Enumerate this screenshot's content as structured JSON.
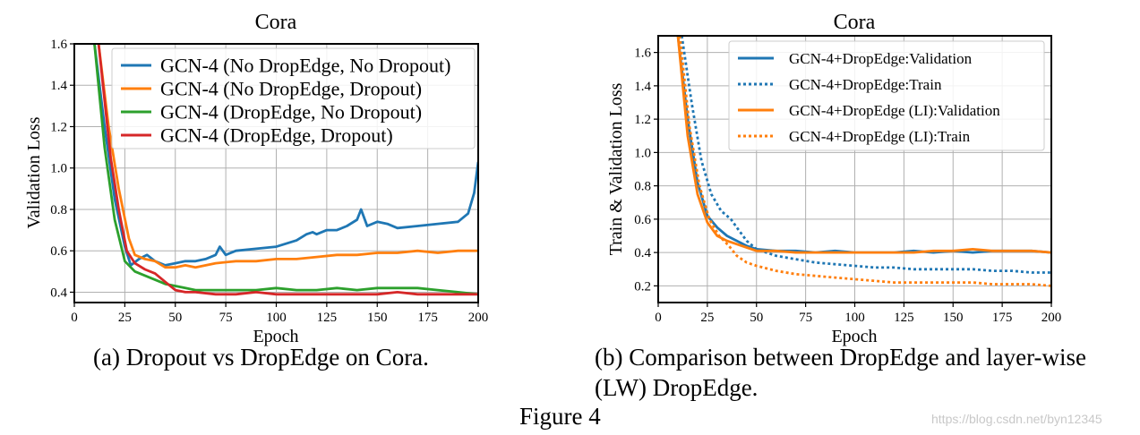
{
  "figure_caption": "Figure 4",
  "watermark": "https://blog.csdn.net/byn12345",
  "captions": {
    "a": "(a) Dropout vs DropEdge on Cora.",
    "b_line1": "(b) Comparison between DropEdge and layer-wise",
    "b_line2": "(LW) DropEdge."
  },
  "colors": {
    "blue": "#1f77b4",
    "orange": "#ff7f0e",
    "green": "#2ca02c",
    "red": "#d62728"
  },
  "chart_data": [
    {
      "type": "line",
      "title": "Cora",
      "xlabel": "Epoch",
      "ylabel": "Validation Loss",
      "xlim": [
        0,
        200
      ],
      "ylim": [
        0.35,
        1.6
      ],
      "xticks": [
        0,
        25,
        50,
        75,
        100,
        125,
        150,
        175,
        200
      ],
      "yticks": [
        0.4,
        0.6,
        0.8,
        1.0,
        1.2,
        1.4,
        1.6
      ],
      "grid": true,
      "legend_position": "top-right",
      "series": [
        {
          "name": "GCN-4 (No DropEdge, No Dropout)",
          "color": "blue",
          "style": "solid",
          "x": [
            10,
            15,
            20,
            25,
            28,
            32,
            36,
            40,
            45,
            50,
            55,
            60,
            65,
            70,
            72,
            75,
            80,
            90,
            100,
            110,
            115,
            118,
            120,
            125,
            130,
            135,
            140,
            142,
            145,
            150,
            155,
            160,
            170,
            180,
            190,
            195,
            198,
            200
          ],
          "y": [
            1.6,
            1.2,
            0.85,
            0.62,
            0.53,
            0.56,
            0.58,
            0.55,
            0.53,
            0.54,
            0.55,
            0.55,
            0.56,
            0.58,
            0.62,
            0.58,
            0.6,
            0.61,
            0.62,
            0.65,
            0.68,
            0.69,
            0.68,
            0.7,
            0.7,
            0.72,
            0.75,
            0.8,
            0.72,
            0.74,
            0.73,
            0.71,
            0.72,
            0.73,
            0.74,
            0.78,
            0.88,
            1.03
          ]
        },
        {
          "name": "GCN-4 (No DropEdge, Dropout)",
          "color": "orange",
          "style": "solid",
          "x": [
            12,
            17,
            22,
            27,
            30,
            35,
            40,
            45,
            50,
            55,
            60,
            70,
            80,
            90,
            100,
            110,
            120,
            130,
            140,
            150,
            160,
            170,
            180,
            190,
            200
          ],
          "y": [
            1.6,
            1.2,
            0.9,
            0.66,
            0.58,
            0.56,
            0.55,
            0.52,
            0.52,
            0.53,
            0.52,
            0.54,
            0.55,
            0.55,
            0.56,
            0.56,
            0.57,
            0.58,
            0.58,
            0.59,
            0.59,
            0.6,
            0.59,
            0.6,
            0.6
          ]
        },
        {
          "name": "GCN-4 (DropEdge, No Dropout)",
          "color": "green",
          "style": "solid",
          "x": [
            10,
            15,
            20,
            25,
            30,
            35,
            40,
            45,
            50,
            55,
            60,
            70,
            80,
            90,
            100,
            110,
            120,
            130,
            140,
            150,
            160,
            170,
            180,
            190,
            200
          ],
          "y": [
            1.6,
            1.1,
            0.75,
            0.55,
            0.5,
            0.48,
            0.46,
            0.44,
            0.43,
            0.42,
            0.41,
            0.41,
            0.41,
            0.41,
            0.42,
            0.41,
            0.41,
            0.42,
            0.41,
            0.42,
            0.42,
            0.42,
            0.41,
            0.4,
            0.39
          ]
        },
        {
          "name": "GCN-4 (DropEdge, Dropout)",
          "color": "red",
          "style": "solid",
          "x": [
            12,
            18,
            22,
            26,
            30,
            35,
            40,
            45,
            50,
            55,
            60,
            70,
            80,
            90,
            100,
            110,
            120,
            130,
            140,
            150,
            160,
            170,
            180,
            190,
            200
          ],
          "y": [
            1.6,
            1.05,
            0.8,
            0.6,
            0.54,
            0.51,
            0.49,
            0.45,
            0.41,
            0.4,
            0.4,
            0.39,
            0.39,
            0.4,
            0.39,
            0.39,
            0.39,
            0.39,
            0.39,
            0.39,
            0.4,
            0.39,
            0.39,
            0.39,
            0.39
          ]
        }
      ]
    },
    {
      "type": "line",
      "title": "Cora",
      "xlabel": "Epoch",
      "ylabel": "Train & Validation Loss",
      "xlim": [
        0,
        200
      ],
      "ylim": [
        0.1,
        1.7
      ],
      "xticks": [
        0,
        25,
        50,
        75,
        100,
        125,
        150,
        175,
        200
      ],
      "yticks": [
        0.2,
        0.4,
        0.6,
        0.8,
        1.0,
        1.2,
        1.4,
        1.6
      ],
      "grid": true,
      "legend_position": "top-right",
      "series": [
        {
          "name": "GCN-4+DropEdge:Validation",
          "color": "blue",
          "style": "solid",
          "x": [
            10,
            15,
            20,
            25,
            30,
            35,
            40,
            45,
            50,
            60,
            70,
            80,
            90,
            100,
            110,
            120,
            130,
            140,
            150,
            160,
            170,
            180,
            190,
            200
          ],
          "y": [
            1.7,
            1.2,
            0.82,
            0.62,
            0.55,
            0.5,
            0.47,
            0.44,
            0.42,
            0.41,
            0.41,
            0.4,
            0.41,
            0.4,
            0.4,
            0.4,
            0.41,
            0.4,
            0.41,
            0.4,
            0.41,
            0.41,
            0.41,
            0.4
          ]
        },
        {
          "name": "GCN-4+DropEdge:Train",
          "color": "blue",
          "style": "dotted",
          "x": [
            12,
            17,
            22,
            27,
            32,
            37,
            40,
            45,
            50,
            60,
            70,
            80,
            90,
            100,
            110,
            120,
            130,
            140,
            150,
            160,
            170,
            180,
            190,
            200
          ],
          "y": [
            1.7,
            1.3,
            0.95,
            0.75,
            0.65,
            0.6,
            0.55,
            0.47,
            0.42,
            0.38,
            0.36,
            0.34,
            0.33,
            0.32,
            0.31,
            0.31,
            0.3,
            0.3,
            0.3,
            0.3,
            0.29,
            0.29,
            0.28,
            0.28
          ]
        },
        {
          "name": "GCN-4+DropEdge (LI):Validation",
          "color": "orange",
          "style": "solid",
          "x": [
            10,
            15,
            20,
            25,
            30,
            35,
            40,
            45,
            50,
            60,
            70,
            80,
            90,
            100,
            110,
            120,
            130,
            140,
            150,
            160,
            170,
            180,
            190,
            200
          ],
          "y": [
            1.7,
            1.1,
            0.75,
            0.58,
            0.5,
            0.47,
            0.45,
            0.43,
            0.41,
            0.41,
            0.4,
            0.4,
            0.4,
            0.4,
            0.4,
            0.4,
            0.4,
            0.41,
            0.41,
            0.42,
            0.41,
            0.41,
            0.41,
            0.4
          ]
        },
        {
          "name": "GCN-4+DropEdge (LI):Train",
          "color": "orange",
          "style": "dotted",
          "x": [
            11,
            16,
            21,
            26,
            31,
            36,
            40,
            45,
            50,
            60,
            70,
            80,
            90,
            100,
            110,
            120,
            130,
            140,
            150,
            160,
            170,
            180,
            190,
            200
          ],
          "y": [
            1.7,
            1.15,
            0.8,
            0.6,
            0.5,
            0.44,
            0.38,
            0.34,
            0.32,
            0.29,
            0.27,
            0.26,
            0.25,
            0.24,
            0.23,
            0.22,
            0.22,
            0.22,
            0.22,
            0.22,
            0.21,
            0.21,
            0.21,
            0.2
          ]
        }
      ]
    }
  ]
}
